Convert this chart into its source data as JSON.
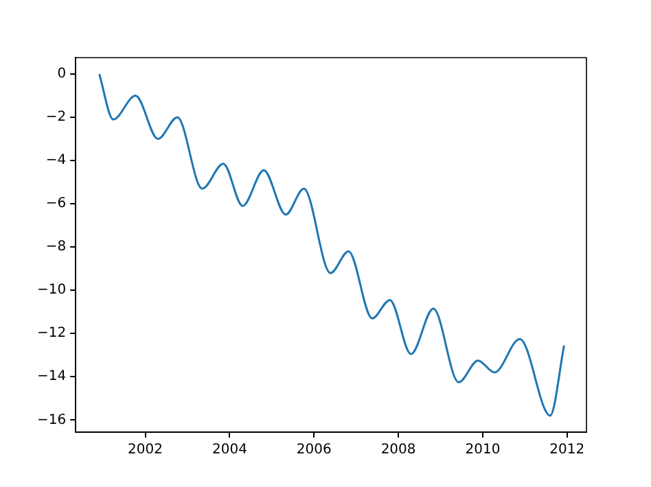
{
  "chart_data": {
    "type": "line",
    "x": [
      2000.91,
      2001.24,
      2001.77,
      2002.3,
      2002.76,
      2003.35,
      2003.85,
      2004.31,
      2004.81,
      2005.33,
      2005.76,
      2006.39,
      2006.82,
      2007.38,
      2007.8,
      2008.3,
      2008.83,
      2009.43,
      2009.89,
      2010.28,
      2010.88,
      2011.6,
      2011.93
    ],
    "series": [
      {
        "color": "#1f77b4",
        "values": [
          0,
          -2.1,
          -1.0,
          -3.0,
          -2.0,
          -5.3,
          -4.15,
          -6.1,
          -4.45,
          -6.5,
          -5.3,
          -9.2,
          -8.2,
          -11.3,
          -10.45,
          -12.95,
          -10.85,
          -14.25,
          -13.25,
          -13.8,
          -12.25,
          -15.8,
          -12.55
        ]
      }
    ],
    "xlim": [
      2000.35,
      2012.46
    ],
    "xticks": [
      2002,
      2004,
      2006,
      2008,
      2010,
      2012
    ],
    "ylim": [
      -16.56,
      0.76
    ],
    "yticks": [
      -16,
      -14,
      -12,
      -10,
      -8,
      -6,
      -4,
      -2,
      0
    ],
    "marker": "none",
    "line_style": "solid"
  }
}
